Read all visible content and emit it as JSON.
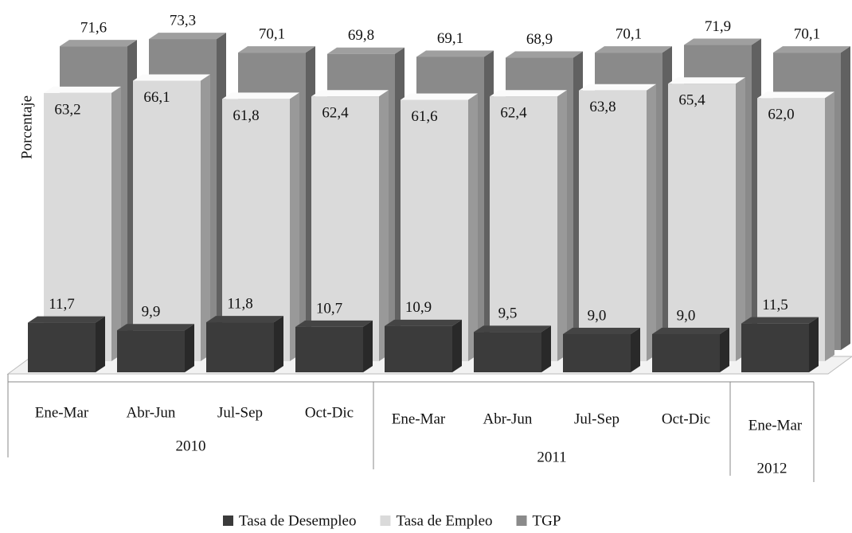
{
  "chart_data": {
    "type": "bar3d",
    "ylabel": "Porcentaje",
    "category_groups": [
      {
        "name": "2010",
        "categories": [
          "Ene-Mar",
          "Abr-Jun",
          "Jul-Sep",
          "Oct-Dic"
        ]
      },
      {
        "name": "2011",
        "categories": [
          "Ene-Mar",
          "Abr-Jun",
          "Jul-Sep",
          "Oct-Dic"
        ]
      },
      {
        "name": "2012",
        "categories": [
          "Ene-Mar"
        ]
      }
    ],
    "ylim": [
      0,
      75
    ],
    "series": [
      {
        "name": "Tasa de Desempleo",
        "color": "#3b3b3b",
        "values": [
          11.7,
          9.9,
          11.8,
          10.7,
          10.9,
          9.5,
          9.0,
          9.0,
          11.5
        ],
        "value_labels": [
          "11,7",
          "9,9",
          "11,8",
          "10,7",
          "10,9",
          "9,5",
          "9,0",
          "9,0",
          "11,5"
        ]
      },
      {
        "name": "Tasa de Empleo",
        "color": "#dadada",
        "values": [
          63.2,
          66.1,
          61.8,
          62.4,
          61.6,
          62.4,
          63.8,
          65.4,
          62.0
        ],
        "value_labels": [
          "63,2",
          "66,1",
          "61,8",
          "62,4",
          "61,6",
          "62,4",
          "63,8",
          "65,4",
          "62,0"
        ]
      },
      {
        "name": "TGP",
        "color": "#8a8a8a",
        "values": [
          71.6,
          73.3,
          70.1,
          69.8,
          69.1,
          68.9,
          70.1,
          71.9,
          70.1
        ],
        "value_labels": [
          "71,6",
          "73,3",
          "70,1",
          "69,8",
          "69,1",
          "68,9",
          "70,1",
          "71,9",
          "70,1"
        ]
      }
    ]
  }
}
